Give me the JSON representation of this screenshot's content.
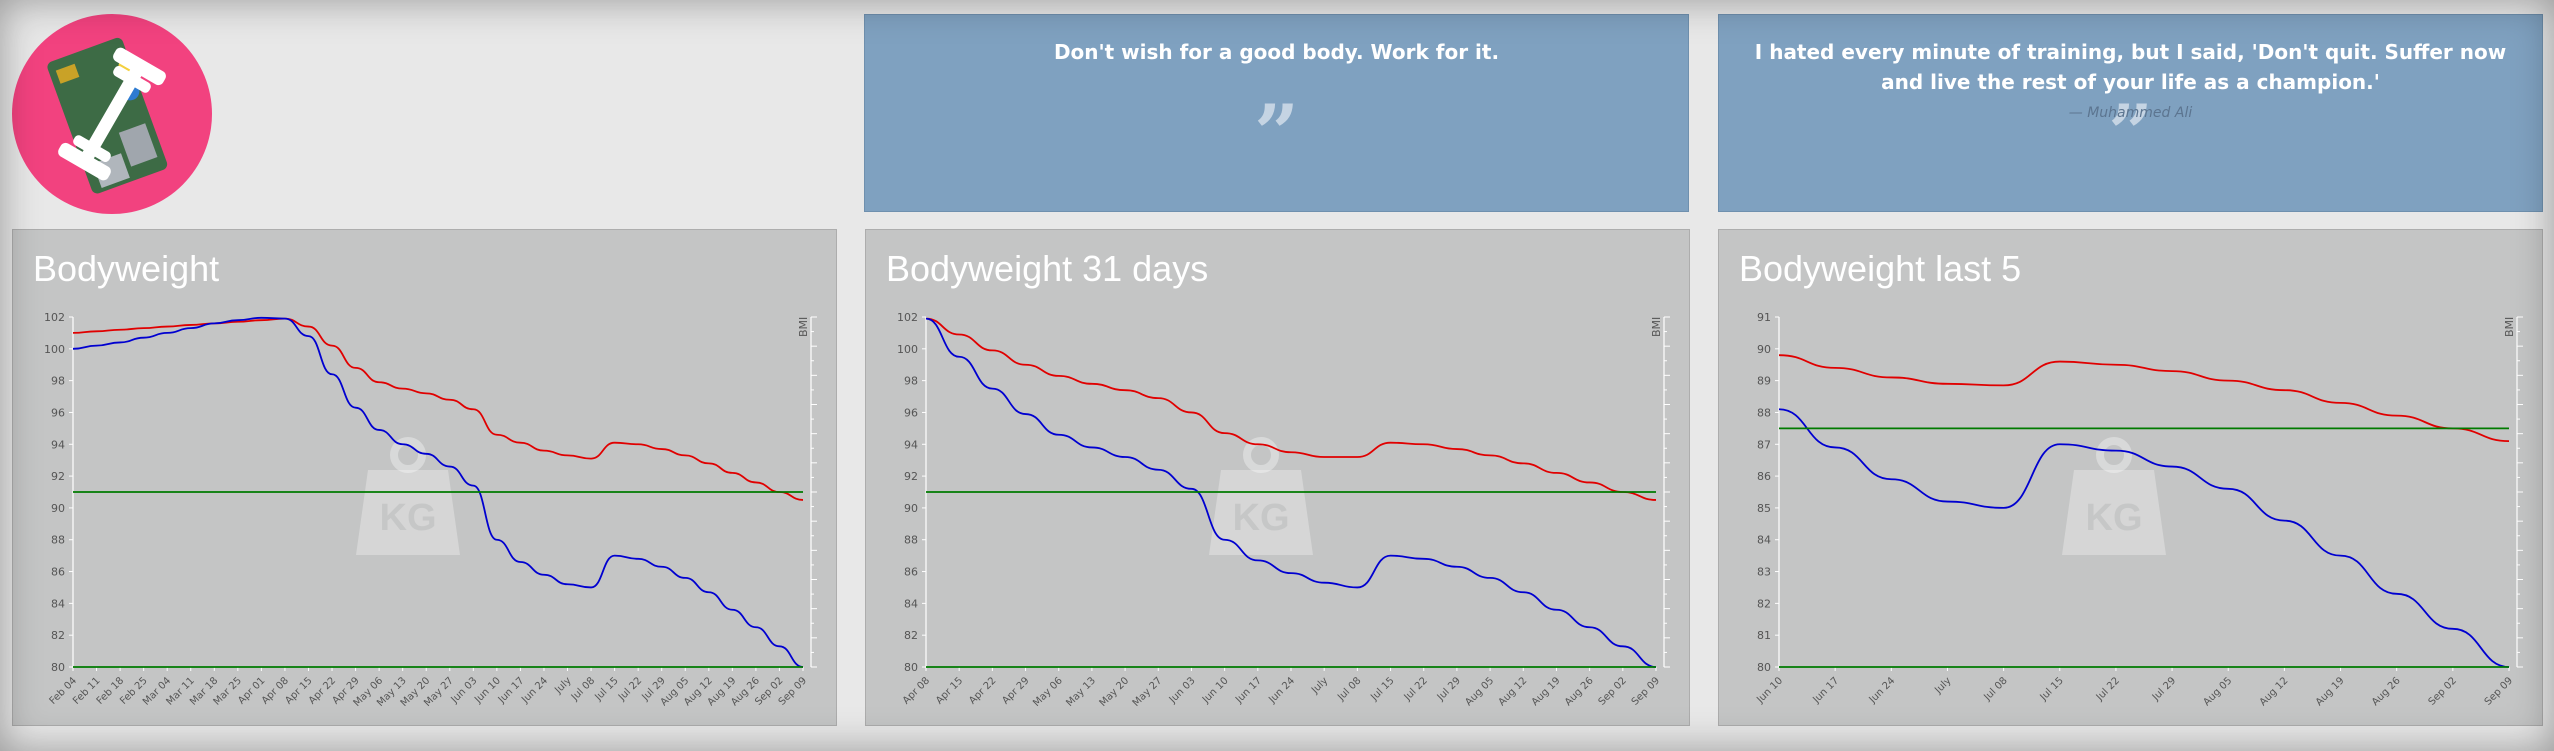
{
  "quotes": [
    {
      "text": "Don't wish for a good body. Work for it.",
      "author": ""
    },
    {
      "text": "I hated every minute of training, but I said, 'Don't quit. Suffer now and live the rest of your life as a champion.'",
      "author": "— Muhammed Ali"
    }
  ],
  "colors": {
    "logo_bg": "#f2427f",
    "quote_bg": "#7fa1c0",
    "panel_bg": "#c4c5c5",
    "series_red": "#e00000",
    "series_blue": "#0000d0",
    "series_green": "#007a00"
  },
  "watermark": "KG",
  "chart_data": [
    {
      "type": "line",
      "title": "Bodyweight",
      "ylabel": "",
      "y2label": "BMI",
      "ylim": [
        80,
        102
      ],
      "yticks": [
        102,
        100,
        98,
        96,
        94,
        92,
        90,
        88,
        86,
        84,
        82,
        80
      ],
      "x": [
        "Feb 04",
        "Feb 11",
        "Feb 18",
        "Feb 25",
        "Mar 04",
        "Mar 11",
        "Mar 18",
        "Mar 25",
        "Apr 01",
        "Apr 08",
        "Apr 15",
        "Apr 22",
        "Apr 29",
        "May 06",
        "May 13",
        "May 20",
        "May 27",
        "Jun 03",
        "Jun 10",
        "Jun 17",
        "Jun 24",
        "July",
        "Jul 08",
        "Jul 15",
        "Jul 22",
        "Jul 29",
        "Aug 05",
        "Aug 12",
        "Aug 19",
        "Aug 26",
        "Sep 02",
        "Sep 09"
      ],
      "series": [
        {
          "name": "",
          "color": "red",
          "values": [
            101.0,
            101.1,
            101.2,
            101.3,
            101.4,
            101.5,
            101.6,
            101.7,
            101.8,
            101.9,
            101.4,
            100.2,
            98.8,
            97.9,
            97.5,
            97.2,
            96.8,
            96.2,
            94.6,
            94.1,
            93.6,
            93.3,
            93.1,
            94.1,
            94.0,
            93.7,
            93.3,
            92.8,
            92.2,
            91.6,
            91.0,
            90.5
          ]
        },
        {
          "name": "",
          "color": "blue",
          "values": [
            100.0,
            100.2,
            100.4,
            100.7,
            101.0,
            101.3,
            101.6,
            101.8,
            101.95,
            101.9,
            100.8,
            98.4,
            96.3,
            94.9,
            94.0,
            93.4,
            92.6,
            91.4,
            88.0,
            86.6,
            85.8,
            85.2,
            85.0,
            87.0,
            86.8,
            86.3,
            85.6,
            84.7,
            83.6,
            82.5,
            81.3,
            80.0
          ]
        },
        {
          "name": "",
          "color": "green",
          "values": [
            91.0,
            91.0,
            91.0,
            91.0,
            91.0,
            91.0,
            91.0,
            91.0,
            91.0,
            91.0,
            91.0,
            91.0,
            91.0,
            91.0,
            91.0,
            91.0,
            91.0,
            91.0,
            91.0,
            91.0,
            91.0,
            91.0,
            91.0,
            91.0,
            91.0,
            91.0,
            91.0,
            91.0,
            91.0,
            91.0,
            91.0,
            91.0
          ]
        },
        {
          "name": "",
          "color": "green",
          "values": [
            80.0,
            80.0,
            80.0,
            80.0,
            80.0,
            80.0,
            80.0,
            80.0,
            80.0,
            80.0,
            80.0,
            80.0,
            80.0,
            80.0,
            80.0,
            80.0,
            80.0,
            80.0,
            80.0,
            80.0,
            80.0,
            80.0,
            80.0,
            80.0,
            80.0,
            80.0,
            80.0,
            80.0,
            80.0,
            80.0,
            80.0,
            80.0
          ]
        }
      ]
    },
    {
      "type": "line",
      "title": "Bodyweight 31 days",
      "ylabel": "",
      "y2label": "BMI",
      "ylim": [
        80,
        102
      ],
      "yticks": [
        102,
        100,
        98,
        96,
        94,
        92,
        90,
        88,
        86,
        84,
        82,
        80
      ],
      "x": [
        "Apr 08",
        "Apr 15",
        "Apr 22",
        "Apr 29",
        "May 06",
        "May 13",
        "May 20",
        "May 27",
        "Jun 03",
        "Jun 10",
        "Jun 17",
        "Jun 24",
        "July",
        "Jul 08",
        "Jul 15",
        "Jul 22",
        "Jul 29",
        "Aug 05",
        "Aug 12",
        "Aug 19",
        "Aug 26",
        "Sep 02",
        "Sep 09"
      ],
      "series": [
        {
          "name": "",
          "color": "red",
          "values": [
            101.9,
            100.9,
            99.9,
            99.0,
            98.3,
            97.8,
            97.4,
            96.9,
            96.0,
            94.7,
            94.0,
            93.5,
            93.2,
            93.2,
            94.1,
            94.0,
            93.7,
            93.3,
            92.8,
            92.2,
            91.6,
            91.0,
            90.5
          ]
        },
        {
          "name": "",
          "color": "blue",
          "values": [
            101.9,
            99.5,
            97.5,
            95.9,
            94.6,
            93.8,
            93.2,
            92.4,
            91.2,
            88.0,
            86.7,
            85.9,
            85.3,
            85.0,
            87.0,
            86.8,
            86.3,
            85.6,
            84.7,
            83.6,
            82.5,
            81.3,
            80.0
          ]
        },
        {
          "name": "",
          "color": "green",
          "values": [
            91.0,
            91.0,
            91.0,
            91.0,
            91.0,
            91.0,
            91.0,
            91.0,
            91.0,
            91.0,
            91.0,
            91.0,
            91.0,
            91.0,
            91.0,
            91.0,
            91.0,
            91.0,
            91.0,
            91.0,
            91.0,
            91.0,
            91.0
          ]
        },
        {
          "name": "",
          "color": "green",
          "values": [
            80.0,
            80.0,
            80.0,
            80.0,
            80.0,
            80.0,
            80.0,
            80.0,
            80.0,
            80.0,
            80.0,
            80.0,
            80.0,
            80.0,
            80.0,
            80.0,
            80.0,
            80.0,
            80.0,
            80.0,
            80.0,
            80.0,
            80.0
          ]
        }
      ]
    },
    {
      "type": "line",
      "title": "Bodyweight last 5",
      "ylabel": "",
      "y2label": "BMI",
      "ylim": [
        80,
        91
      ],
      "yticks": [
        91,
        90,
        89,
        88,
        87,
        86,
        85,
        84,
        83,
        82,
        81,
        80
      ],
      "x": [
        "Jun 10",
        "Jun 17",
        "Jun 24",
        "July",
        "Jul 08",
        "Jul 15",
        "Jul 22",
        "Jul 29",
        "Aug 05",
        "Aug 12",
        "Aug 19",
        "Aug 26",
        "Sep 02",
        "Sep 09"
      ],
      "series": [
        {
          "name": "",
          "color": "red",
          "values": [
            89.8,
            89.4,
            89.1,
            88.9,
            88.85,
            89.6,
            89.5,
            89.3,
            89.0,
            88.7,
            88.3,
            87.9,
            87.5,
            87.1
          ]
        },
        {
          "name": "",
          "color": "blue",
          "values": [
            88.1,
            86.9,
            85.9,
            85.2,
            85.0,
            87.0,
            86.8,
            86.3,
            85.6,
            84.6,
            83.5,
            82.3,
            81.2,
            80.0
          ]
        },
        {
          "name": "",
          "color": "green",
          "values": [
            87.5,
            87.5,
            87.5,
            87.5,
            87.5,
            87.5,
            87.5,
            87.5,
            87.5,
            87.5,
            87.5,
            87.5,
            87.5,
            87.5
          ]
        },
        {
          "name": "",
          "color": "green",
          "values": [
            80.0,
            80.0,
            80.0,
            80.0,
            80.0,
            80.0,
            80.0,
            80.0,
            80.0,
            80.0,
            80.0,
            80.0,
            80.0,
            80.0
          ]
        }
      ]
    }
  ]
}
